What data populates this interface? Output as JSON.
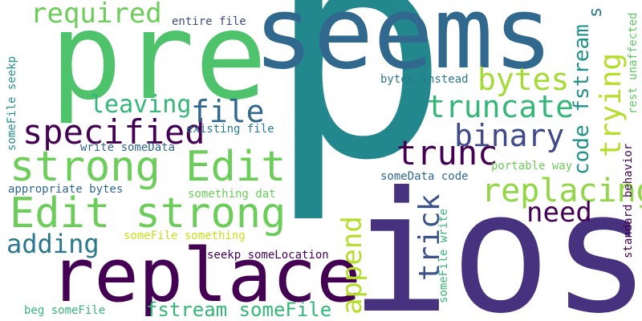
{
  "cloud": {
    "words": {
      "p": {
        "text": "p",
        "color": "#23888e"
      },
      "ios": {
        "text": "ios",
        "color": "#46327e"
      },
      "seems": {
        "text": "seems",
        "color": "#31688e"
      },
      "pre": {
        "text": "pre",
        "color": "#4ec36b"
      },
      "replace": {
        "text": "replace",
        "color": "#440154"
      },
      "edit_strong_1": {
        "text": "strong Edit",
        "color": "#6ccd5a"
      },
      "edit_strong_2": {
        "text": "Edit strong",
        "color": "#6ccd5a"
      },
      "required": {
        "text": "required",
        "color": "#6ccd5a"
      },
      "specified": {
        "text": "specified",
        "color": "#440154"
      },
      "bytes": {
        "text": "bytes",
        "color": "#a5db36"
      },
      "truncate": {
        "text": "truncate",
        "color": "#35b779"
      },
      "binary": {
        "text": "binary",
        "color": "#3e4a89"
      },
      "trunc": {
        "text": "trunc",
        "color": "#440154"
      },
      "file": {
        "text": "file",
        "color": "#31688e"
      },
      "leaving": {
        "text": "leaving",
        "color": "#35b779"
      },
      "adding": {
        "text": "adding",
        "color": "#2a788e"
      },
      "replacing": {
        "text": "replacing",
        "color": "#90d743"
      },
      "need": {
        "text": "need",
        "color": "#440154"
      },
      "append": {
        "text": "append",
        "color": "#b5de2b"
      },
      "trick": {
        "text": "trick",
        "color": "#3b528b"
      },
      "trying": {
        "text": "trying",
        "color": "#b5de2b"
      },
      "code_fstream": {
        "text": "code fstream",
        "color": "#21918c"
      },
      "fstream_somefile": {
        "text": "fstream someFile",
        "color": "#35b779"
      },
      "entire_file": {
        "text": "entire file",
        "color": "#3e4a89"
      },
      "existing_file": {
        "text": "existing file",
        "color": "#2a788e"
      },
      "bytes_instead": {
        "text": "bytes instead",
        "color": "#2a788e"
      },
      "write_somedata": {
        "text": "write someData",
        "color": "#31688e"
      },
      "somedata_code": {
        "text": "someData code",
        "color": "#31688e"
      },
      "portable_way": {
        "text": "portable way",
        "color": "#6ccd5a"
      },
      "appropriate_bytes": {
        "text": "appropriate bytes",
        "color": "#31688e"
      },
      "something_dat": {
        "text": "something dat",
        "color": "#6ccd5a"
      },
      "somefile_something": {
        "text": "someFile something",
        "color": "#c8e020"
      },
      "seekp_somelocation": {
        "text": "seekp someLocation",
        "color": "#440154"
      },
      "beg_somefile": {
        "text": "beg someFile",
        "color": "#35b779"
      },
      "somefile_seekp": {
        "text": "someFile seekp",
        "color": "#21918c"
      },
      "somefile_write": {
        "text": "someFile write",
        "color": "#35b779"
      },
      "standard_behavior": {
        "text": "standard behavior",
        "color": "#440154"
      },
      "rest_unaffected": {
        "text": "rest unaffected",
        "color": "#5ec962"
      },
      "small_s": {
        "text": "s",
        "color": "#2a788e"
      }
    }
  }
}
